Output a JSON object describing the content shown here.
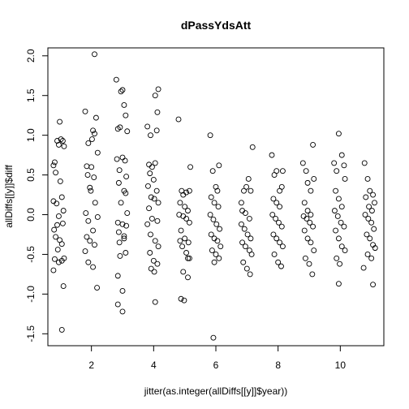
{
  "chart_data": {
    "type": "scatter",
    "title": "dPassYdsAtt",
    "xlabel": "jitter(as.integer(allDiffs[[y]]$year))",
    "ylabel": "allDiffs[[y]]$diff",
    "xlim": [
      0.6,
      11.4
    ],
    "ylim": [
      -1.65,
      2.1
    ],
    "xticks": [
      2,
      4,
      6,
      8,
      10
    ],
    "yticks": [
      -1.5,
      -1.0,
      -0.5,
      0.0,
      0.5,
      1.0,
      1.5,
      2.0
    ],
    "xtick_labels": [
      "2",
      "4",
      "6",
      "8",
      "10"
    ],
    "ytick_labels": [
      "-1.5",
      "-1.0",
      "-0.5",
      "0.0",
      "0.5",
      "1.0",
      "1.5",
      "2.0"
    ],
    "grid": false,
    "marker": "open-circle",
    "series": [
      {
        "points": [
          [
            0.78,
            0.62
          ],
          [
            0.82,
            0.66
          ],
          [
            0.9,
            0.93
          ],
          [
            0.95,
            0.88
          ],
          [
            0.98,
            1.17
          ],
          [
            1.02,
            0.95
          ],
          [
            1.08,
            0.93
          ],
          [
            1.12,
            0.86
          ],
          [
            0.85,
            0.53
          ],
          [
            1.0,
            0.42
          ],
          [
            0.78,
            0.17
          ],
          [
            0.88,
            0.14
          ],
          [
            1.05,
            0.22
          ],
          [
            1.1,
            0.05
          ],
          [
            0.95,
            -0.02
          ],
          [
            0.8,
            -0.19
          ],
          [
            0.9,
            -0.13
          ],
          [
            1.08,
            -0.11
          ],
          [
            0.85,
            -0.28
          ],
          [
            0.98,
            -0.32
          ],
          [
            1.05,
            -0.37
          ],
          [
            0.92,
            -0.44
          ],
          [
            0.82,
            -0.56
          ],
          [
            0.95,
            -0.6
          ],
          [
            1.05,
            -0.58
          ],
          [
            1.12,
            -0.55
          ],
          [
            0.78,
            -0.7
          ],
          [
            1.1,
            -0.9
          ],
          [
            1.05,
            -1.45
          ],
          [
            1.8,
            1.3
          ],
          [
            1.9,
            0.9
          ],
          [
            2.05,
            1.06
          ],
          [
            2.1,
            1.02
          ],
          [
            2.02,
            0.95
          ],
          [
            2.15,
            1.22
          ],
          [
            2.2,
            0.78
          ],
          [
            2.1,
            2.02
          ],
          [
            1.85,
            0.61
          ],
          [
            1.88,
            0.5
          ],
          [
            2.08,
            0.47
          ],
          [
            1.95,
            0.34
          ],
          [
            1.98,
            0.3
          ],
          [
            2.12,
            0.15
          ],
          [
            1.82,
            0.02
          ],
          [
            1.9,
            -0.08
          ],
          [
            2.05,
            -0.2
          ],
          [
            2.2,
            -0.03
          ],
          [
            1.85,
            -0.28
          ],
          [
            1.95,
            -0.33
          ],
          [
            2.1,
            -0.38
          ],
          [
            1.8,
            -0.46
          ],
          [
            1.9,
            -0.6
          ],
          [
            2.05,
            -0.66
          ],
          [
            2.18,
            -0.92
          ],
          [
            2.0,
            0.6
          ],
          [
            2.8,
            1.7
          ],
          [
            2.95,
            1.55
          ],
          [
            3.0,
            1.57
          ],
          [
            3.05,
            1.38
          ],
          [
            3.1,
            1.25
          ],
          [
            2.85,
            1.08
          ],
          [
            2.92,
            1.1
          ],
          [
            3.15,
            1.05
          ],
          [
            2.82,
            0.7
          ],
          [
            3.0,
            0.72
          ],
          [
            3.08,
            0.68
          ],
          [
            2.9,
            0.56
          ],
          [
            3.12,
            0.48
          ],
          [
            2.88,
            0.4
          ],
          [
            3.05,
            0.3
          ],
          [
            3.1,
            0.27
          ],
          [
            2.95,
            0.15
          ],
          [
            3.15,
            0.02
          ],
          [
            2.85,
            -0.1
          ],
          [
            3.0,
            -0.12
          ],
          [
            3.12,
            -0.14
          ],
          [
            2.88,
            -0.22
          ],
          [
            3.05,
            -0.27
          ],
          [
            2.9,
            -0.35
          ],
          [
            3.05,
            -0.3
          ],
          [
            2.92,
            -0.52
          ],
          [
            3.1,
            -0.48
          ],
          [
            2.85,
            -0.77
          ],
          [
            3.0,
            -0.96
          ],
          [
            2.85,
            -1.13
          ],
          [
            3.0,
            -1.22
          ],
          [
            3.8,
            1.11
          ],
          [
            3.9,
            1.0
          ],
          [
            4.05,
            1.5
          ],
          [
            4.15,
            1.58
          ],
          [
            4.12,
            1.29
          ],
          [
            4.1,
            1.06
          ],
          [
            3.85,
            0.63
          ],
          [
            3.95,
            0.6
          ],
          [
            4.05,
            0.65
          ],
          [
            3.88,
            0.52
          ],
          [
            4.0,
            0.44
          ],
          [
            4.1,
            0.3
          ],
          [
            3.82,
            0.36
          ],
          [
            3.92,
            0.22
          ],
          [
            4.02,
            0.2
          ],
          [
            4.15,
            0.15
          ],
          [
            3.85,
            0.08
          ],
          [
            3.95,
            -0.05
          ],
          [
            4.12,
            -0.08
          ],
          [
            3.8,
            -0.12
          ],
          [
            3.9,
            -0.25
          ],
          [
            4.05,
            -0.33
          ],
          [
            4.15,
            -0.4
          ],
          [
            3.88,
            -0.48
          ],
          [
            4.0,
            -0.58
          ],
          [
            4.12,
            -0.62
          ],
          [
            3.92,
            -0.68
          ],
          [
            4.02,
            -0.72
          ],
          [
            4.05,
            -1.1
          ],
          [
            4.8,
            1.2
          ],
          [
            4.9,
            0.3
          ],
          [
            4.95,
            0.25
          ],
          [
            5.05,
            0.28
          ],
          [
            5.15,
            0.3
          ],
          [
            5.18,
            0.6
          ],
          [
            4.85,
            0.15
          ],
          [
            5.0,
            0.1
          ],
          [
            5.1,
            0.05
          ],
          [
            4.82,
            0.0
          ],
          [
            4.95,
            -0.02
          ],
          [
            5.05,
            -0.05
          ],
          [
            5.15,
            -0.1
          ],
          [
            4.88,
            -0.2
          ],
          [
            5.0,
            -0.3
          ],
          [
            5.12,
            -0.35
          ],
          [
            4.85,
            -0.33
          ],
          [
            4.92,
            -0.4
          ],
          [
            5.05,
            -0.48
          ],
          [
            5.1,
            -0.55
          ],
          [
            5.15,
            -0.55
          ],
          [
            4.95,
            -0.72
          ],
          [
            5.1,
            -0.79
          ],
          [
            4.88,
            -1.06
          ],
          [
            4.98,
            -1.08
          ],
          [
            5.82,
            1.0
          ],
          [
            5.9,
            0.55
          ],
          [
            6.05,
            0.3
          ],
          [
            6.1,
            0.62
          ],
          [
            6.0,
            0.35
          ],
          [
            5.85,
            0.22
          ],
          [
            5.95,
            0.15
          ],
          [
            6.08,
            0.1
          ],
          [
            5.82,
            0.0
          ],
          [
            5.92,
            -0.06
          ],
          [
            6.02,
            -0.12
          ],
          [
            6.12,
            -0.18
          ],
          [
            5.85,
            -0.25
          ],
          [
            5.95,
            -0.3
          ],
          [
            6.05,
            -0.33
          ],
          [
            6.15,
            -0.4
          ],
          [
            5.88,
            -0.45
          ],
          [
            6.0,
            -0.5
          ],
          [
            6.1,
            -0.55
          ],
          [
            5.95,
            -0.6
          ],
          [
            5.92,
            -1.55
          ],
          [
            6.82,
            0.15
          ],
          [
            6.9,
            0.3
          ],
          [
            6.98,
            0.35
          ],
          [
            7.05,
            0.45
          ],
          [
            7.12,
            0.3
          ],
          [
            7.18,
            0.85
          ],
          [
            6.85,
            0.05
          ],
          [
            6.95,
            0.02
          ],
          [
            7.08,
            -0.05
          ],
          [
            6.82,
            -0.12
          ],
          [
            6.92,
            -0.18
          ],
          [
            7.02,
            -0.25
          ],
          [
            7.12,
            -0.3
          ],
          [
            6.85,
            -0.35
          ],
          [
            6.95,
            -0.4
          ],
          [
            7.08,
            -0.45
          ],
          [
            7.15,
            -0.5
          ],
          [
            6.88,
            -0.6
          ],
          [
            7.0,
            -0.68
          ],
          [
            7.1,
            -0.75
          ],
          [
            7.8,
            0.75
          ],
          [
            7.88,
            0.5
          ],
          [
            7.95,
            0.55
          ],
          [
            8.05,
            0.3
          ],
          [
            8.12,
            0.35
          ],
          [
            8.15,
            0.55
          ],
          [
            7.85,
            0.2
          ],
          [
            7.95,
            0.15
          ],
          [
            8.05,
            0.1
          ],
          [
            7.82,
            0.0
          ],
          [
            7.92,
            -0.05
          ],
          [
            8.02,
            -0.1
          ],
          [
            8.12,
            -0.15
          ],
          [
            7.85,
            -0.25
          ],
          [
            7.95,
            -0.3
          ],
          [
            8.05,
            -0.35
          ],
          [
            8.15,
            -0.4
          ],
          [
            7.88,
            -0.5
          ],
          [
            8.0,
            -0.6
          ],
          [
            8.1,
            -0.65
          ],
          [
            8.8,
            0.65
          ],
          [
            8.9,
            0.55
          ],
          [
            8.95,
            0.4
          ],
          [
            9.05,
            0.3
          ],
          [
            9.12,
            0.88
          ],
          [
            9.15,
            0.45
          ],
          [
            8.85,
            0.15
          ],
          [
            8.95,
            0.05
          ],
          [
            9.05,
            0.0
          ],
          [
            8.82,
            -0.02
          ],
          [
            8.92,
            -0.05
          ],
          [
            9.02,
            -0.1
          ],
          [
            9.12,
            -0.15
          ],
          [
            8.85,
            -0.2
          ],
          [
            8.95,
            -0.3
          ],
          [
            9.05,
            -0.35
          ],
          [
            9.15,
            -0.45
          ],
          [
            8.88,
            -0.55
          ],
          [
            9.0,
            -0.62
          ],
          [
            9.1,
            -0.75
          ],
          [
            9.8,
            0.65
          ],
          [
            9.88,
            0.55
          ],
          [
            9.95,
            1.02
          ],
          [
            10.05,
            0.75
          ],
          [
            10.12,
            0.62
          ],
          [
            10.15,
            0.45
          ],
          [
            9.85,
            0.3
          ],
          [
            9.95,
            0.2
          ],
          [
            10.05,
            0.1
          ],
          [
            9.82,
            0.05
          ],
          [
            9.92,
            -0.02
          ],
          [
            10.02,
            -0.1
          ],
          [
            10.12,
            -0.15
          ],
          [
            9.85,
            -0.2
          ],
          [
            9.95,
            -0.3
          ],
          [
            10.05,
            -0.4
          ],
          [
            10.15,
            -0.45
          ],
          [
            9.88,
            -0.55
          ],
          [
            9.98,
            -0.62
          ],
          [
            9.95,
            -0.87
          ],
          [
            10.78,
            0.65
          ],
          [
            10.88,
            0.45
          ],
          [
            10.95,
            0.3
          ],
          [
            11.05,
            0.25
          ],
          [
            11.1,
            0.15
          ],
          [
            10.82,
            0.22
          ],
          [
            10.92,
            0.1
          ],
          [
            11.02,
            0.05
          ],
          [
            10.8,
            0.0
          ],
          [
            10.9,
            -0.05
          ],
          [
            11.0,
            -0.1
          ],
          [
            11.08,
            -0.18
          ],
          [
            10.85,
            -0.25
          ],
          [
            10.95,
            -0.3
          ],
          [
            11.05,
            -0.38
          ],
          [
            11.12,
            -0.42
          ],
          [
            10.88,
            -0.5
          ],
          [
            11.0,
            -0.55
          ],
          [
            10.75,
            -0.67
          ],
          [
            11.05,
            -0.88
          ]
        ]
      }
    ]
  }
}
